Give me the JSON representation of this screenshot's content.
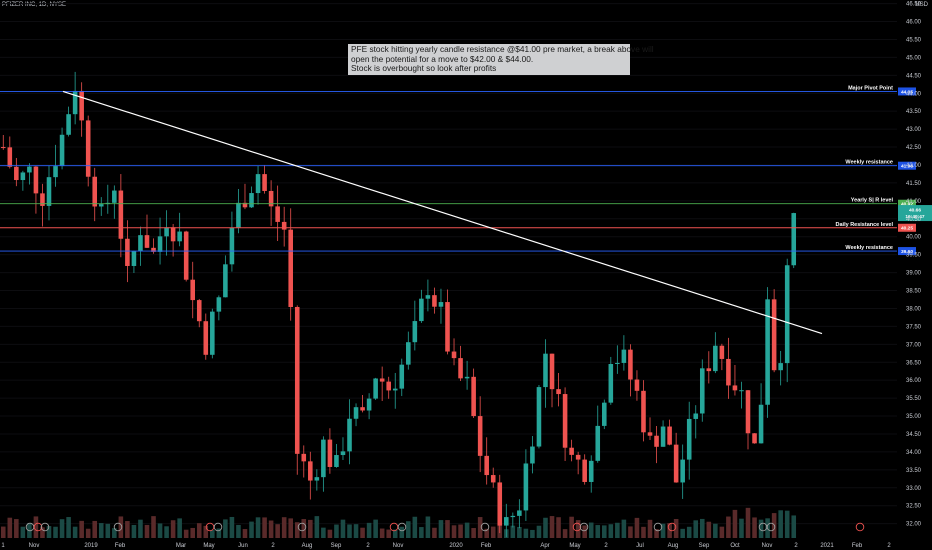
{
  "header": {
    "symbol_line": "PFIZER INC, 1D, NYSE",
    "currency": "USD"
  },
  "annotation": {
    "lines": [
      "PFE stock hitting yearly candle resistance @$41.00 pre market, a break above will",
      "open the potential for a move to $42.00 & $44.00.",
      "Stock is overbought so look after profits"
    ]
  },
  "chart_data": {
    "type": "candlestick",
    "ylim": [
      31.6,
      46.6
    ],
    "y_ticks": [
      "46.50",
      "46.00",
      "45.50",
      "45.00",
      "44.50",
      "44.00",
      "43.50",
      "43.00",
      "42.50",
      "42.00",
      "41.50",
      "41.00",
      "40.50",
      "40.00",
      "39.50",
      "39.00",
      "38.50",
      "38.00",
      "37.50",
      "37.00",
      "36.50",
      "36.00",
      "35.50",
      "35.00",
      "34.50",
      "34.00",
      "33.50",
      "33.00",
      "32.50",
      "32.00"
    ],
    "x_ticks": [
      "1",
      "Nov",
      "2019",
      "Feb",
      "Mar",
      "May",
      "Jun",
      "2",
      "Aug",
      "Sep",
      "2",
      "Nov",
      "2020",
      "Feb",
      "Apr",
      "May",
      "2",
      "Jul",
      "Aug",
      "Sep",
      "Oct",
      "Nov",
      "2",
      "2021",
      "Feb",
      "2"
    ],
    "horizontal_levels": [
      {
        "label": "Major Pivot Point",
        "value": 44.05,
        "badge": "44.05",
        "color": "#2962ff",
        "badge_color": "#1e53e5"
      },
      {
        "label": "Weekly resistance",
        "value": 41.98,
        "badge": "41.98",
        "color": "#2962ff",
        "badge_color": "#1e53e5"
      },
      {
        "label": "Yearly  S| R level",
        "value": 40.92,
        "badge": "40.92",
        "color": "#4caf50",
        "badge_color": "#4caf50"
      },
      {
        "label": "Daily Resistance level",
        "value": 40.25,
        "badge": "40.25",
        "color": "#ef5350",
        "badge_color": "#ef5350"
      },
      {
        "label": "Weekly resistance",
        "value": 39.6,
        "badge": "39.60",
        "color": "#2962ff",
        "badge_color": "#1e53e5"
      }
    ],
    "current_price": {
      "value": 40.66,
      "badge": "40.66",
      "countdown": "16:49:47",
      "color": "#26a69a"
    },
    "trendline": {
      "from": {
        "date": "2018-12",
        "value": 44.05
      },
      "to": {
        "date": "2020-12",
        "value": 37.3
      },
      "color": "#ffffff"
    },
    "price_path": [
      [
        0,
        42.5
      ],
      [
        2,
        41.5
      ],
      [
        4,
        41.8
      ],
      [
        6,
        41.2
      ],
      [
        9,
        42.8
      ],
      [
        11,
        44.3
      ],
      [
        13,
        42.0
      ],
      [
        15,
        40.5
      ],
      [
        17,
        41.5
      ],
      [
        19,
        38.8
      ],
      [
        21,
        40.3
      ],
      [
        23,
        39.5
      ],
      [
        25,
        40.6
      ],
      [
        27,
        40.0
      ],
      [
        29,
        38.2
      ],
      [
        31,
        37.1
      ],
      [
        33,
        38.2
      ],
      [
        35,
        40.3
      ],
      [
        37,
        41.2
      ],
      [
        39,
        41.8
      ],
      [
        41,
        40.7
      ],
      [
        43,
        40.2
      ],
      [
        44,
        38.0
      ],
      [
        45,
        34.0
      ],
      [
        47,
        33.2
      ],
      [
        49,
        34.2
      ],
      [
        51,
        33.5
      ],
      [
        53,
        35.1
      ],
      [
        55,
        34.8
      ],
      [
        57,
        36.2
      ],
      [
        59,
        35.8
      ],
      [
        61,
        36.4
      ],
      [
        63,
        37.3
      ],
      [
        65,
        38.7
      ],
      [
        67,
        37.8
      ],
      [
        69,
        36.2
      ],
      [
        71,
        35.8
      ],
      [
        73,
        34.0
      ],
      [
        75,
        32.8
      ],
      [
        77,
        31.9
      ],
      [
        79,
        32.6
      ],
      [
        81,
        34.6
      ],
      [
        83,
        36.8
      ],
      [
        85,
        35.3
      ],
      [
        87,
        33.8
      ],
      [
        89,
        33.6
      ],
      [
        91,
        34.7
      ],
      [
        93,
        36.8
      ],
      [
        95,
        36.5
      ],
      [
        97,
        35.6
      ],
      [
        99,
        34.2
      ],
      [
        101,
        34.8
      ],
      [
        103,
        33.2
      ],
      [
        105,
        34.5
      ],
      [
        107,
        36.0
      ],
      [
        109,
        37.1
      ],
      [
        111,
        36.3
      ],
      [
        113,
        35.6
      ],
      [
        115,
        34.1
      ],
      [
        116,
        35.5
      ],
      [
        117,
        38.5
      ],
      [
        118,
        36.5
      ],
      [
        119,
        36.9
      ],
      [
        120,
        38.8
      ],
      [
        121,
        40.66
      ]
    ]
  }
}
